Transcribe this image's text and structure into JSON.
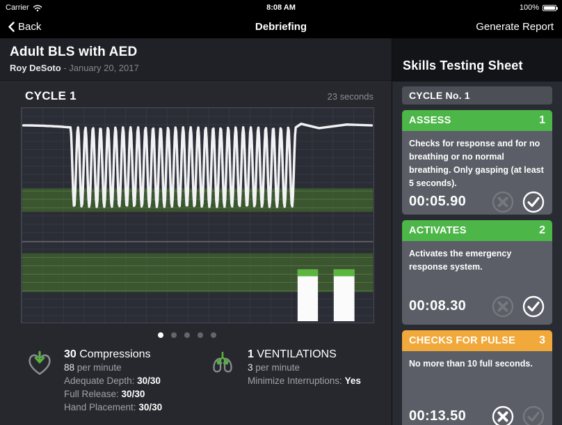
{
  "status_bar": {
    "carrier": "Carrier",
    "time": "8:08 AM",
    "battery": "100%"
  },
  "nav_bar": {
    "back_label": "Back",
    "title": "Debriefing",
    "action_label": "Generate Report"
  },
  "session": {
    "title": "Adult BLS with AED",
    "student": "Roy DeSoto",
    "separator": " - ",
    "date": "January 20, 2017"
  },
  "cycle_panel": {
    "title": "CYCLE 1",
    "duration_label": "23 seconds",
    "page_dots": {
      "count": 5,
      "active_index": 0
    }
  },
  "stats": {
    "compressions": {
      "count": "30",
      "label": "Compressions",
      "rate_value": "88",
      "rate_label": "per minute",
      "rows": [
        {
          "label": "Adequate Depth: ",
          "value": "30/30"
        },
        {
          "label": "Full Release: ",
          "value": "30/30"
        },
        {
          "label": "Hand Placement: ",
          "value": "30/30"
        }
      ]
    },
    "ventilations": {
      "count": "1",
      "label": "VENTILATIONS",
      "rate_value": "3",
      "rate_label": "per minute",
      "rows": [
        {
          "label": "Minimize Interruptions: ",
          "value": "Yes"
        }
      ]
    }
  },
  "sidebar": {
    "title": "Skills Testing Sheet",
    "cycle_label": "CYCLE No. 1",
    "cards": [
      {
        "name": "ASSESS",
        "number": "1",
        "color": "#4cb648",
        "description": "Checks for response and for no breathing or no normal breathing. Only gasping (at least 5 seconds).",
        "time": "00:05.90",
        "fail_active": false,
        "pass_active": true
      },
      {
        "name": "ACTIVATES",
        "number": "2",
        "color": "#4cb648",
        "description": "Activates the emergency response system.",
        "time": "00:08.30",
        "fail_active": false,
        "pass_active": true
      },
      {
        "name": "CHECKS FOR PULSE",
        "number": "3",
        "color": "#f2a93b",
        "description": "No more than 10 full seconds.",
        "time": "00:13.50",
        "fail_active": true,
        "pass_active": false
      }
    ]
  },
  "chart_data": {
    "type": "line",
    "title": "CYCLE 1",
    "duration_seconds": 23,
    "description": "CPR compression depth waveform over one 23-second cycle with ventilation bars and green target-depth zones",
    "compressions": {
      "count": 30,
      "rate_per_minute": 88,
      "adequate_depth": "30/30",
      "full_release": "30/30",
      "hand_placement": "30/30"
    },
    "ventilations": {
      "count": 1,
      "rate_per_minute": 3,
      "minimize_interruptions": "Yes"
    },
    "target_zones": [
      {
        "y0": 0.374,
        "y1": 0.484
      },
      {
        "y0": 0.677,
        "y1": 0.858
      }
    ],
    "divider_y": 0.623,
    "ventilation_bars": [
      {
        "x0": 0.785,
        "x1": 0.843,
        "top": 0.752
      },
      {
        "x0": 0.888,
        "x1": 0.947,
        "top": 0.752
      }
    ],
    "waveform": {
      "flat_y": 0.081,
      "wave_x0": 0.138,
      "wave_x1": 0.78,
      "wave_top": 0.09,
      "wave_bottom": 0.461,
      "tail": [
        [
          0.795,
          0.074
        ],
        [
          0.846,
          0.094
        ],
        [
          0.925,
          0.077
        ],
        [
          0.996,
          0.081
        ]
      ]
    },
    "legend": "off",
    "grid": "on"
  }
}
